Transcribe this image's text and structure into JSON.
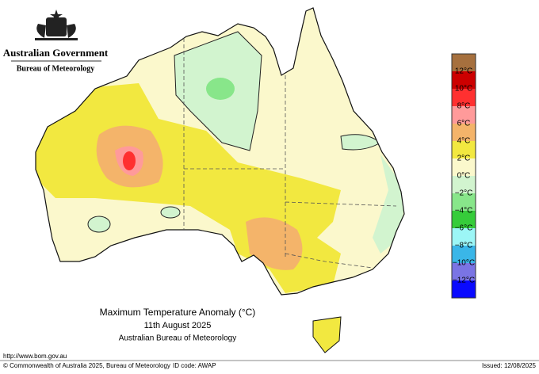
{
  "header": {
    "agency": "Australian Government",
    "bureau": "Bureau of Meteorology"
  },
  "map": {
    "title": "Maximum Temperature Anomaly (°C)",
    "date": "11th August 2025",
    "source": "Australian Bureau of Meteorology"
  },
  "legend": {
    "labels": [
      "12°C",
      "10°C",
      "8°C",
      "6°C",
      "4°C",
      "2°C",
      "0°C",
      "−2°C",
      "−4°C",
      "−6°C",
      "−8°C",
      "−10°C",
      "−12°C"
    ],
    "colors": [
      "#a6703e",
      "#cc0000",
      "#ff3030",
      "#ff9a9a",
      "#f4b46a",
      "#f2e840",
      "#fbf8cc",
      "#d2f4cf",
      "#88e68a",
      "#36cc3a",
      "#9cf6f6",
      "#3ab6e8",
      "#7a74e4",
      "#0a0aff"
    ]
  },
  "footer": {
    "url": "http://www.bom.gov.au",
    "copyright": "© Commonwealth of Australia 2025, Bureau of Meteorology",
    "id": "ID code: AWAP",
    "issued": "Issued: 12/08/2025"
  }
}
